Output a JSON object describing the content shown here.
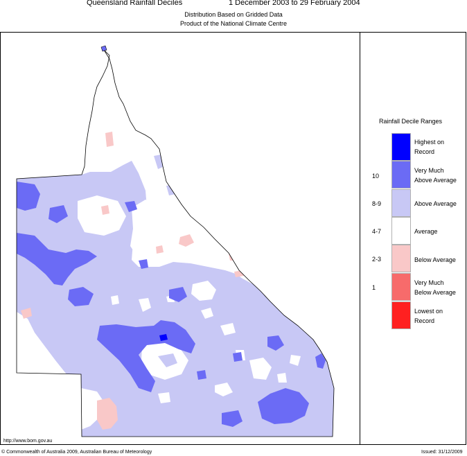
{
  "header": {
    "title": "Queensland Rainfall Deciles",
    "period": "1 December 2003 to 29 February 2004",
    "subtitle1": "Distribution Based on Gridded Data",
    "subtitle2": "Product of the National Climate Centre"
  },
  "legend": {
    "title": "Rainfall Decile Ranges",
    "items": [
      {
        "decile": "",
        "label1": "Highest on",
        "label2": "Record",
        "color": "#0000ff"
      },
      {
        "decile": "10",
        "label1": "Very Much",
        "label2": "Above Average",
        "color": "#6b6bf5"
      },
      {
        "decile": "8-9",
        "label1": "Above Average",
        "label2": "",
        "color": "#c8c8f5"
      },
      {
        "decile": "4-7",
        "label1": "Average",
        "label2": "",
        "color": "#ffffff"
      },
      {
        "decile": "2-3",
        "label1": "Below Average",
        "label2": "",
        "color": "#f9c8c8"
      },
      {
        "decile": "1",
        "label1": "Very Much",
        "label2": "Below Average",
        "color": "#f76b6b"
      },
      {
        "decile": "",
        "label1": "Lowest on",
        "label2": "Record",
        "color": "#ff2020"
      }
    ]
  },
  "footer": {
    "url": "http://www.bom.gov.au",
    "copyright": "© Commonwealth of Australia 2009, Australian Bureau of Meteorology",
    "issued": "Issued: 31/12/2009"
  }
}
